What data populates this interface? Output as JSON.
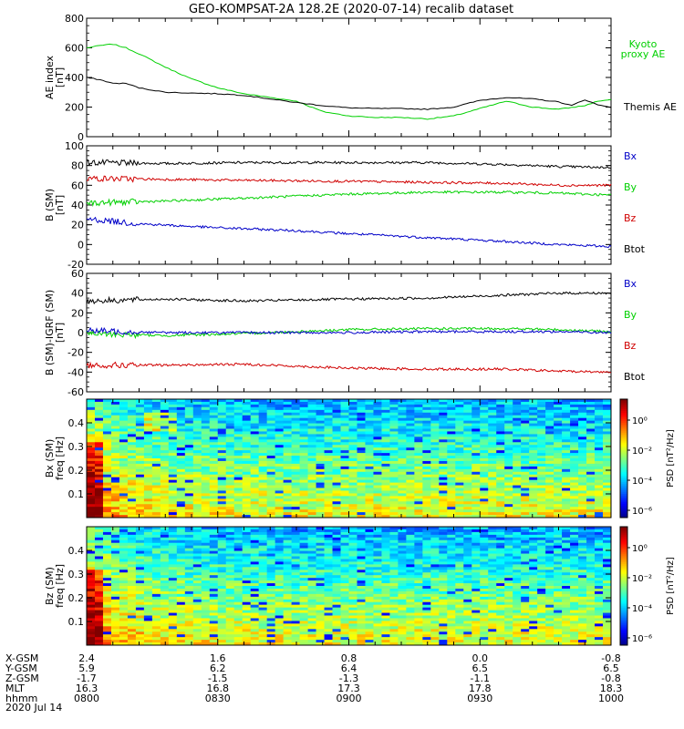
{
  "title": "GEO-KOMPSAT-2A 128.2E (2020-07-14) recalib dataset",
  "colors": {
    "black": "#000000",
    "green": "#00d000",
    "red": "#d00000",
    "blue": "#0000c8"
  },
  "chart_data": [
    {
      "type": "line",
      "ylabel_lines": [
        "AE index",
        "[nT]"
      ],
      "ylim": [
        0,
        800
      ],
      "yticks": [
        0,
        200,
        400,
        600,
        800
      ],
      "xlim": [
        8.0,
        10.0
      ],
      "series": [
        {
          "name": "Kyoto proxy AE",
          "color_key": "green",
          "x": [
            8.0,
            8.05,
            8.1,
            8.15,
            8.2,
            8.3,
            8.4,
            8.5,
            8.6,
            8.7,
            8.8,
            8.9,
            9.0,
            9.1,
            9.2,
            9.3,
            9.4,
            9.5,
            9.6,
            9.7,
            9.8,
            9.9,
            9.95,
            10.0
          ],
          "y": [
            600,
            615,
            625,
            600,
            560,
            470,
            390,
            330,
            290,
            265,
            240,
            170,
            140,
            130,
            130,
            120,
            140,
            190,
            240,
            200,
            185,
            210,
            240,
            250
          ]
        },
        {
          "name": "Themis AE",
          "color_key": "black",
          "x": [
            8.0,
            8.05,
            8.1,
            8.15,
            8.2,
            8.3,
            8.4,
            8.5,
            8.6,
            8.7,
            8.8,
            8.9,
            9.0,
            9.1,
            9.2,
            9.3,
            9.4,
            9.5,
            9.6,
            9.7,
            9.8,
            9.85,
            9.9,
            9.95,
            10.0
          ],
          "y": [
            400,
            385,
            360,
            360,
            330,
            300,
            295,
            290,
            280,
            255,
            230,
            210,
            195,
            190,
            190,
            185,
            200,
            245,
            265,
            255,
            235,
            210,
            250,
            215,
            200
          ]
        }
      ],
      "legend": [
        "Kyoto proxy AE",
        "Themis AE"
      ]
    },
    {
      "type": "line",
      "ylabel_lines": [
        "B (SM)",
        "[nT]"
      ],
      "ylim": [
        -20,
        100
      ],
      "yticks": [
        -20,
        0,
        20,
        40,
        60,
        80,
        100
      ],
      "xlim": [
        8.0,
        10.0
      ],
      "series": [
        {
          "name": "Btot",
          "color_key": "black",
          "x": [
            8.0,
            8.3,
            8.6,
            9.0,
            9.3,
            9.6,
            9.8,
            10.0
          ],
          "y": [
            83,
            82,
            83,
            83,
            83,
            81,
            79,
            78
          ]
        },
        {
          "name": "Bz",
          "color_key": "red",
          "x": [
            8.0,
            8.3,
            8.6,
            9.0,
            9.3,
            9.6,
            9.8,
            10.0
          ],
          "y": [
            67,
            66,
            65,
            64,
            63,
            62,
            60,
            60
          ]
        },
        {
          "name": "By",
          "color_key": "green",
          "x": [
            8.0,
            8.3,
            8.6,
            9.0,
            9.3,
            9.6,
            9.8,
            10.0
          ],
          "y": [
            42,
            44,
            47,
            51,
            53,
            53,
            52,
            50
          ]
        },
        {
          "name": "Bx",
          "color_key": "blue",
          "x": [
            8.0,
            8.2,
            8.5,
            8.8,
            9.0,
            9.3,
            9.6,
            9.8,
            10.0
          ],
          "y": [
            26,
            21,
            17,
            14,
            11,
            7,
            3,
            0,
            -2
          ]
        }
      ],
      "legend": [
        "Bx",
        "By",
        "Bz",
        "Btot"
      ]
    },
    {
      "type": "line",
      "ylabel_lines": [
        "B (SM)-IGRF (SM)",
        "[nT]"
      ],
      "ylim": [
        -60,
        60
      ],
      "yticks": [
        -60,
        -40,
        -20,
        0,
        20,
        40,
        60
      ],
      "xlim": [
        8.0,
        10.0
      ],
      "series": [
        {
          "name": "Btot",
          "color_key": "black",
          "x": [
            8.0,
            8.3,
            8.6,
            9.0,
            9.3,
            9.6,
            9.8,
            10.0
          ],
          "y": [
            32,
            34,
            32,
            34,
            35,
            38,
            40,
            40
          ]
        },
        {
          "name": "By",
          "color_key": "green",
          "x": [
            8.0,
            8.3,
            8.6,
            9.0,
            9.3,
            9.6,
            9.8,
            10.0
          ],
          "y": [
            -1,
            -3,
            -1,
            3,
            4,
            4,
            3,
            1
          ]
        },
        {
          "name": "Bx",
          "color_key": "blue",
          "x": [
            8.0,
            8.3,
            8.6,
            9.0,
            9.3,
            9.6,
            9.8,
            10.0
          ],
          "y": [
            2,
            0,
            0,
            0,
            1,
            1,
            1,
            0
          ]
        },
        {
          "name": "Bz",
          "color_key": "red",
          "x": [
            8.0,
            8.3,
            8.6,
            9.0,
            9.3,
            9.6,
            9.8,
            10.0
          ],
          "y": [
            -33,
            -33,
            -32,
            -36,
            -37,
            -37,
            -39,
            -40
          ]
        }
      ],
      "legend": [
        "Bx",
        "By",
        "Bz",
        "Btot"
      ]
    },
    {
      "type": "heatmap",
      "ylabel_lines": [
        "Bx (SM)",
        "freq [Hz]"
      ],
      "yticks": [
        0.1,
        0.2,
        0.3,
        0.4
      ],
      "ylim": [
        0,
        0.5
      ],
      "xlim": [
        8.0,
        10.0
      ],
      "colorbar_label": "PSD [nT²/Hz]",
      "colorbar_ticks": [
        "10⁰",
        "10⁻²",
        "10⁻⁴",
        "10⁻⁶"
      ]
    },
    {
      "type": "heatmap",
      "ylabel_lines": [
        "Bz (SM)",
        "freq [Hz]"
      ],
      "yticks": [
        0.1,
        0.2,
        0.3,
        0.4
      ],
      "ylim": [
        0,
        0.5
      ],
      "xlim": [
        8.0,
        10.0
      ],
      "colorbar_label": "PSD [nT²/Hz]",
      "colorbar_ticks": [
        "10⁰",
        "10⁻²",
        "10⁻⁴",
        "10⁻⁶"
      ]
    }
  ],
  "x_axis": {
    "row_labels": [
      "X-GSM",
      "Y-GSM",
      "Z-GSM",
      "MLT",
      "hhmm",
      "2020 Jul 14"
    ],
    "ticks": [
      {
        "x": 8.0,
        "values": [
          "2.4",
          "5.9",
          "-1.7",
          "16.3",
          "0800"
        ]
      },
      {
        "x": 8.5,
        "values": [
          "1.6",
          "6.2",
          "-1.5",
          "16.8",
          "0830"
        ]
      },
      {
        "x": 9.0,
        "values": [
          "0.8",
          "6.4",
          "-1.3",
          "17.3",
          "0900"
        ]
      },
      {
        "x": 9.5,
        "values": [
          "0.0",
          "6.5",
          "-1.1",
          "17.8",
          "0930"
        ]
      },
      {
        "x": 10.0,
        "values": [
          "-0.8",
          "6.5",
          "-0.8",
          "18.3",
          "1000"
        ]
      }
    ]
  }
}
